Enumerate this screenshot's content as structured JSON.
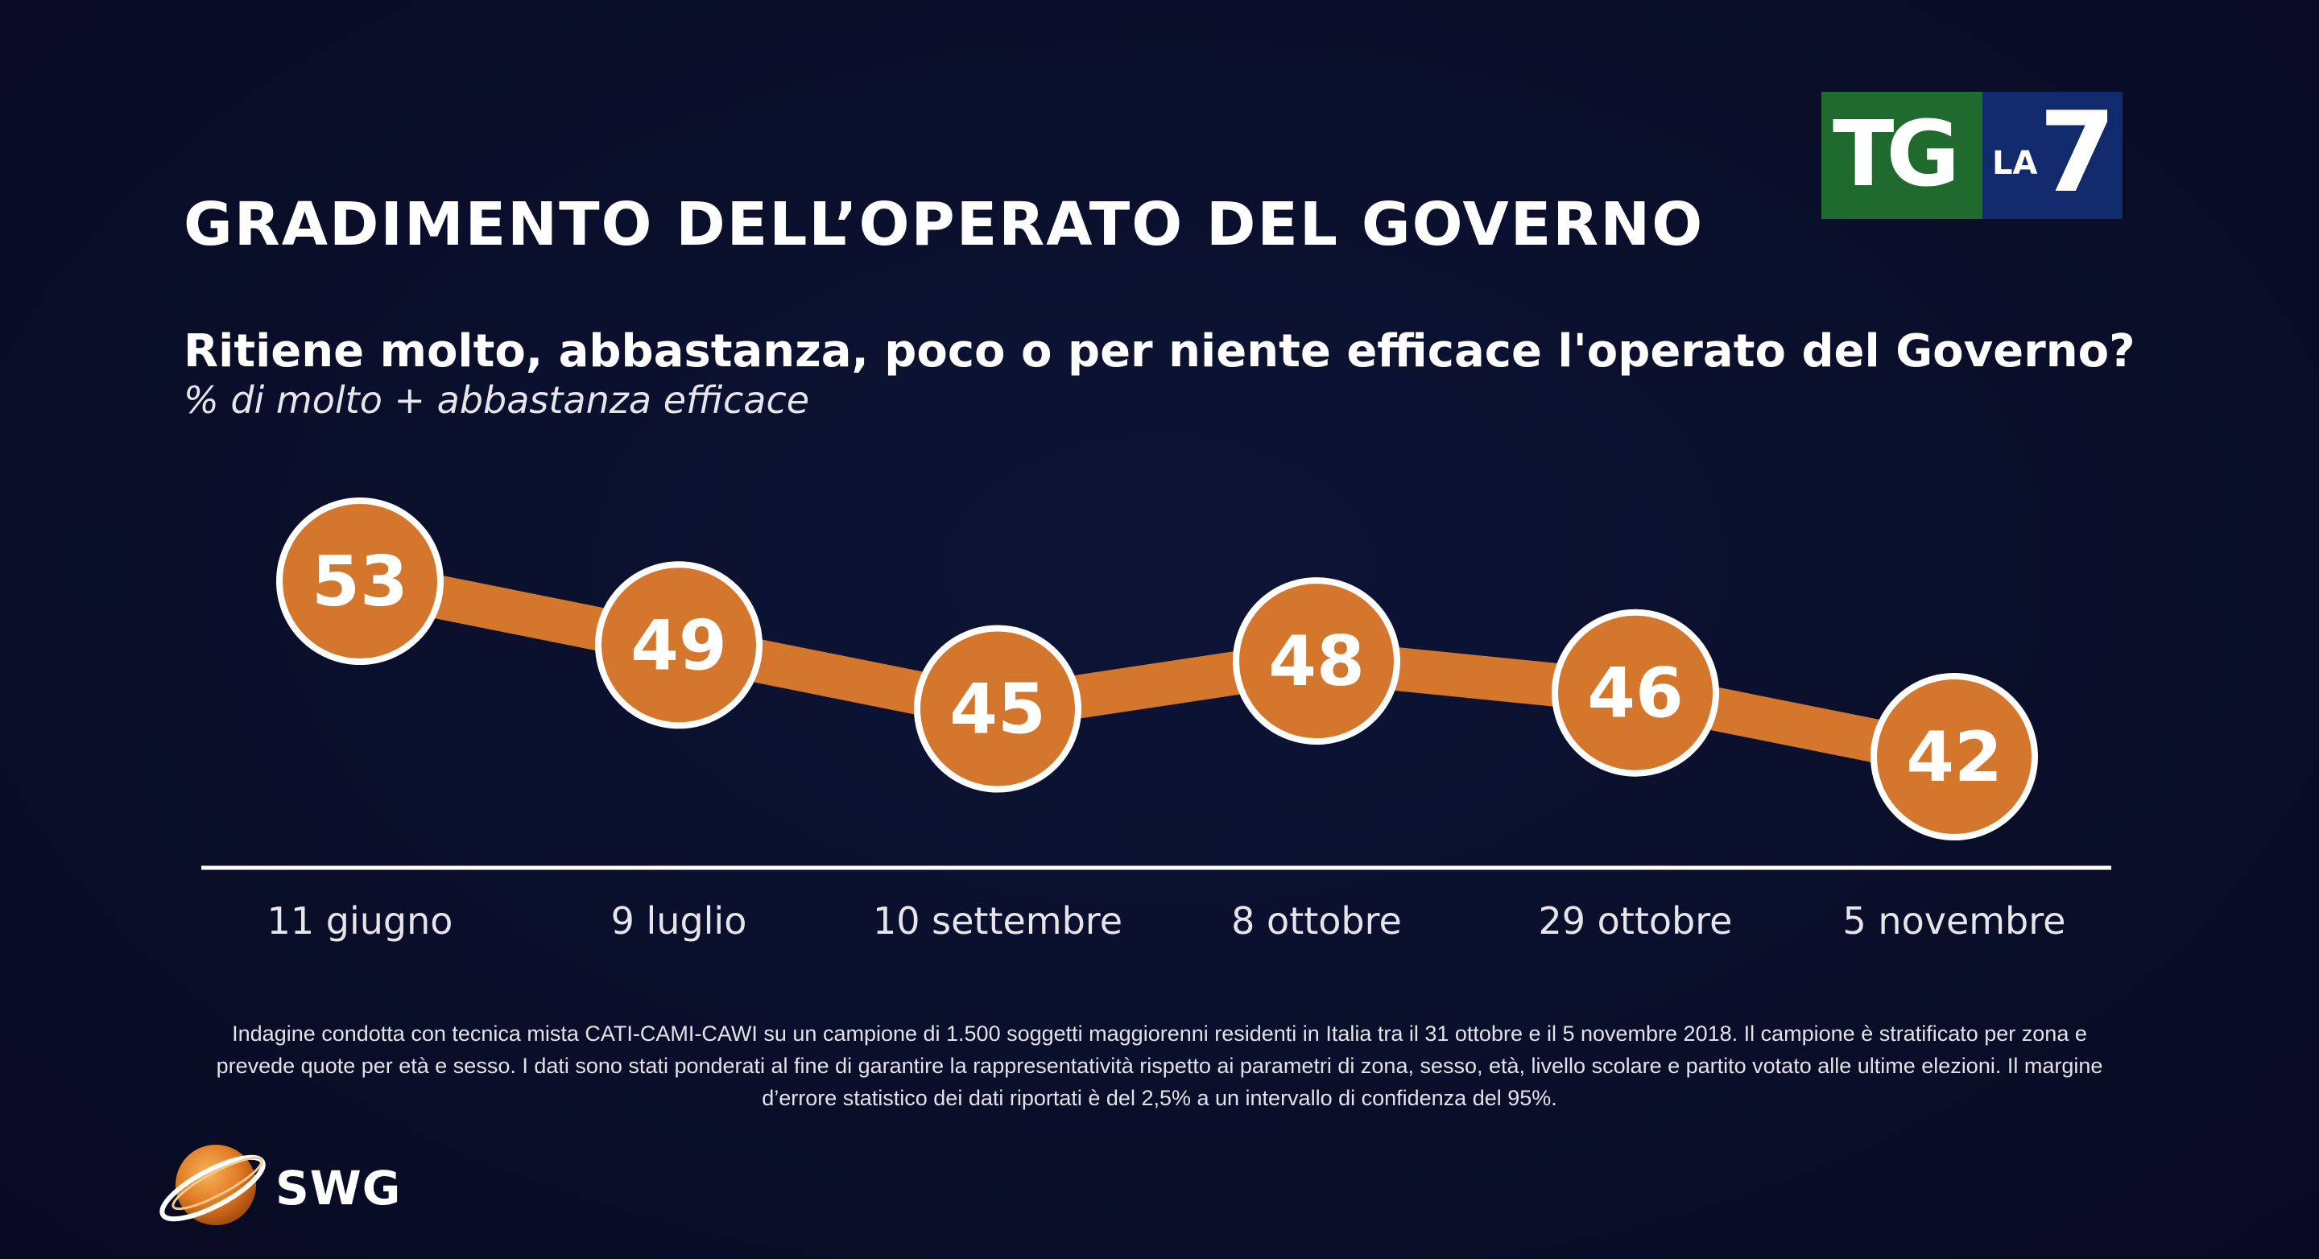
{
  "header": {
    "title": "GRADIMENTO DELL’OPERATO DEL GOVERNO",
    "logo_text_tg": "TG",
    "logo_text_la": "LA",
    "logo_text_7": "7"
  },
  "chart_data": {
    "type": "line",
    "title": "Ritiene molto, abbastanza, poco o per niente efficace l'operato del Governo?",
    "subtitle": "% di molto + abbastanza efficace",
    "categories": [
      "11 giugno",
      "9 luglio",
      "10 settembre",
      "8 ottobre",
      "29 ottobre",
      "5 novembre"
    ],
    "values": [
      53,
      49,
      45,
      48,
      46,
      42
    ],
    "xlabel": "",
    "ylabel": "",
    "grid": false,
    "colors": {
      "line": "#d4772c",
      "marker_fill": "#d4772c",
      "marker_stroke": "#ffffff",
      "baseline": "#ffffff"
    }
  },
  "footer": {
    "note": "Indagine condotta con tecnica mista CATI-CAMI-CAWI su un campione di 1.500 soggetti maggiorenni residenti in Italia tra il 31 ottobre e il 5 novembre 2018. Il campione è stratificato per zona e prevede quote per età e sesso. I dati sono stati ponderati al fine di garantire la rappresentatività rispetto ai parametri di zona, sesso, età, livello scolare e partito votato alle ultime elezioni. Il margine d’errore statistico dei dati riportati è del 2,5% a un intervallo di confidenza del 95%.",
    "brand": "SWG",
    "brand_logo": "swg-globe-icon"
  }
}
